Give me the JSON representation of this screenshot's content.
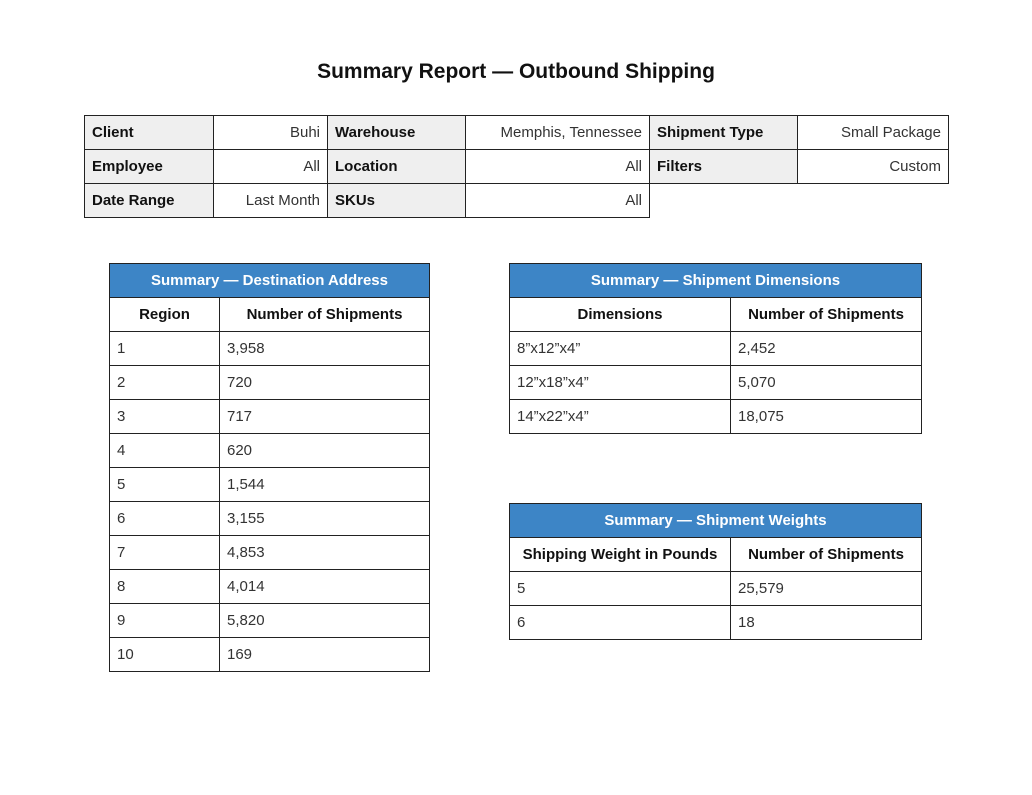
{
  "title": "Summary Report — Outbound Shipping",
  "info": {
    "client_label": "Client",
    "client_value": "Buhi",
    "warehouse_label": "Warehouse",
    "warehouse_value": "Memphis, Tennessee",
    "shipment_type_label": "Shipment Type",
    "shipment_type_value": "Small Package",
    "employee_label": "Employee",
    "employee_value": "All",
    "location_label": "Location",
    "location_value": "All",
    "filters_label": "Filters",
    "filters_value": "Custom",
    "date_range_label": "Date Range",
    "date_range_value": "Last Month",
    "skus_label": "SKUs",
    "skus_value": "All"
  },
  "destination": {
    "title": "Summary — Destination Address",
    "col1": "Region",
    "col2": "Number of Shipments",
    "rows": [
      [
        "1",
        "3,958"
      ],
      [
        "2",
        "720"
      ],
      [
        "3",
        "717"
      ],
      [
        "4",
        "620"
      ],
      [
        "5",
        "1,544"
      ],
      [
        "6",
        "3,155"
      ],
      [
        "7",
        "4,853"
      ],
      [
        "8",
        "4,014"
      ],
      [
        "9",
        "5,820"
      ],
      [
        "10",
        "169"
      ]
    ]
  },
  "dimensions": {
    "title": "Summary — Shipment Dimensions",
    "col1": "Dimensions",
    "col2": "Number of Shipments",
    "rows": [
      [
        "8”x12”x4”",
        "2,452"
      ],
      [
        "12”x18”x4”",
        "5,070"
      ],
      [
        "14”x22”x4”",
        "18,075"
      ]
    ]
  },
  "weights": {
    "title": "Summary — Shipment Weights",
    "col1": "Shipping Weight in Pounds",
    "col2": "Number of Shipments",
    "rows": [
      [
        "5",
        "25,579"
      ],
      [
        "6",
        "18"
      ]
    ]
  },
  "colors": {
    "header_blue": "#3d85c6",
    "label_gray": "#efefef"
  }
}
